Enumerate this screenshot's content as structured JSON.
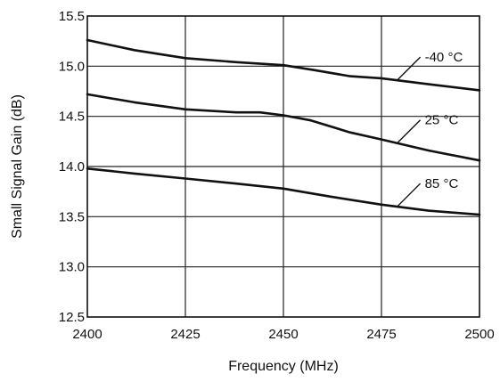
{
  "chart_data": {
    "type": "line",
    "title": "",
    "xlabel": "Frequency (MHz)",
    "ylabel": "Small Signal Gain (dB)",
    "xlim": [
      2400,
      2500
    ],
    "ylim": [
      12.5,
      15.5
    ],
    "x_ticks": [
      2400,
      2425,
      2450,
      2475,
      2500
    ],
    "x_tick_labels": [
      "2400",
      "2425",
      "2450",
      "2475",
      "2500"
    ],
    "y_ticks": [
      12.5,
      13.0,
      13.5,
      14.0,
      14.5,
      15.0,
      15.5
    ],
    "y_tick_labels": [
      "12.5",
      "13.0",
      "13.5",
      "14.0",
      "14.5",
      "15.0",
      "15.5"
    ],
    "grid": true,
    "legend": "none (series labeled inline with leader lines)",
    "series": [
      {
        "name": "-40 °C",
        "x": [
          2400,
          2412,
          2425,
          2438,
          2450,
          2458,
          2467,
          2475,
          2487,
          2500
        ],
        "y": [
          15.26,
          15.16,
          15.08,
          15.04,
          15.01,
          14.96,
          14.9,
          14.88,
          14.82,
          14.76
        ],
        "label_anchor_x": 2479
      },
      {
        "name": "25 °C",
        "x": [
          2400,
          2412,
          2425,
          2438,
          2444,
          2450,
          2457,
          2467,
          2475,
          2487,
          2500
        ],
        "y": [
          14.72,
          14.64,
          14.57,
          14.54,
          14.54,
          14.51,
          14.46,
          14.34,
          14.27,
          14.16,
          14.06
        ],
        "label_anchor_x": 2479
      },
      {
        "name": "85 °C",
        "x": [
          2400,
          2412,
          2425,
          2438,
          2450,
          2462,
          2475,
          2487,
          2500
        ],
        "y": [
          13.98,
          13.93,
          13.88,
          13.83,
          13.78,
          13.7,
          13.62,
          13.56,
          13.52
        ],
        "label_anchor_x": 2479
      }
    ]
  }
}
